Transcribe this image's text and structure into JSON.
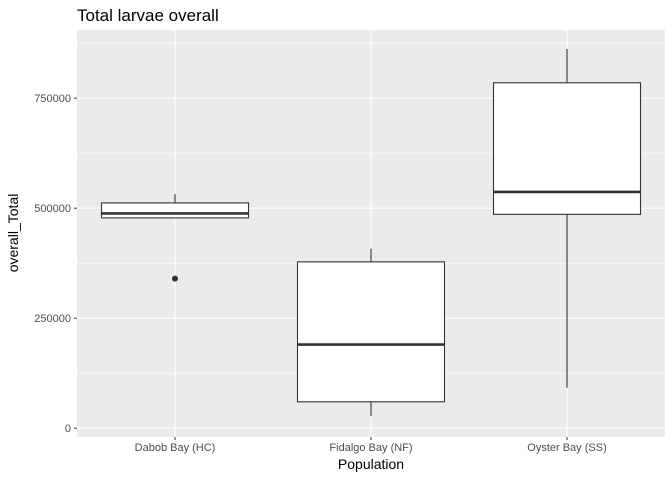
{
  "chart_data": {
    "type": "boxplot",
    "title": "Total larvae overall",
    "xlabel": "Population",
    "ylabel": "overall_Total",
    "categories": [
      "Dabob Bay (HC)",
      "Fidalgo Bay (NF)",
      "Oyster Bay (SS)"
    ],
    "boxes": [
      {
        "category": "Dabob Bay (HC)",
        "whisker_low": 478000,
        "q1": 478000,
        "median": 488000,
        "q3": 512000,
        "whisker_high": 532000,
        "outliers": [
          340000
        ]
      },
      {
        "category": "Fidalgo Bay (NF)",
        "whisker_low": 28000,
        "q1": 60000,
        "median": 190000,
        "q3": 378000,
        "whisker_high": 408000,
        "outliers": []
      },
      {
        "category": "Oyster Bay (SS)",
        "whisker_low": 92000,
        "q1": 486000,
        "median": 537000,
        "q3": 785000,
        "whisker_high": 862000,
        "outliers": []
      }
    ],
    "y_ticks": [
      0,
      250000,
      500000,
      750000
    ],
    "y_tick_labels": [
      "0",
      "250000",
      "500000",
      "750000"
    ],
    "ylim": [
      -20000,
      905000
    ],
    "grid": true,
    "colors": {
      "panel": "#ebebeb",
      "grid": "#ffffff",
      "box_fill": "#ffffff",
      "box_line": "#333333",
      "text": "#000000",
      "tick_text": "#4d4d4d"
    }
  }
}
